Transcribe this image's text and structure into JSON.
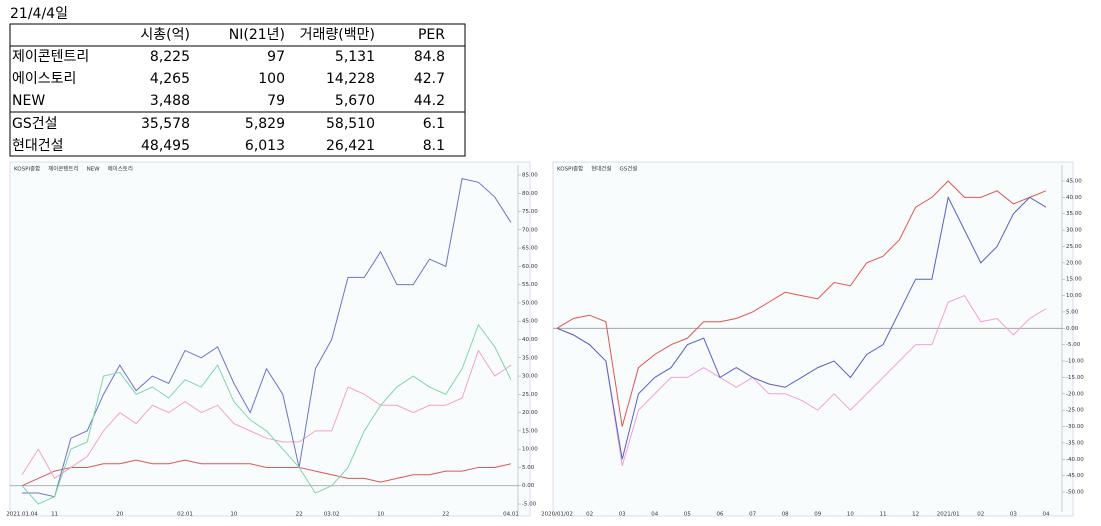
{
  "date": "21/4/4일",
  "table": {
    "header": [
      "시총(억)",
      "NI(21년)",
      "거래량(백만)",
      "PER"
    ],
    "rows": [
      [
        "제이콘텐트리",
        "8,225",
        "97",
        "5,131",
        "84.8"
      ],
      [
        "에이스토리",
        "4,265",
        "100",
        "14,228",
        "42.7"
      ],
      [
        "NEW",
        "3,488",
        "79",
        "5,670",
        "44.2"
      ],
      [
        "GS건설",
        "35,578",
        "5,829",
        "58,510",
        "6.1"
      ],
      [
        "현대건설",
        "48,495",
        "6,013",
        "26,421",
        "8.1"
      ]
    ]
  },
  "chart_data": [
    {
      "type": "line",
      "categories": [
        "2021.01.04",
        null,
        "11",
        null,
        null,
        null,
        "20",
        null,
        null,
        null,
        "02.01",
        null,
        null,
        "10",
        null,
        null,
        null,
        "22",
        null,
        "03.02",
        null,
        null,
        "10",
        null,
        null,
        null,
        "22",
        null,
        null,
        null,
        "04.01"
      ],
      "series": [
        {
          "name": "KOSPI종합",
          "color": "#e05555",
          "values": [
            0,
            2,
            4,
            5,
            5,
            6,
            6,
            7,
            6,
            6,
            7,
            6,
            6,
            6,
            6,
            5,
            5,
            5,
            4,
            3,
            2,
            2,
            1,
            2,
            3,
            3,
            4,
            4,
            5,
            5,
            6
          ]
        },
        {
          "name": "제이콘텐트리",
          "color": "#f4a0c8",
          "values": [
            3,
            10,
            2,
            5,
            8,
            15,
            20,
            17,
            22,
            20,
            23,
            20,
            22,
            17,
            15,
            13,
            12,
            12,
            15,
            15,
            27,
            25,
            22,
            22,
            20,
            22,
            22,
            24,
            37,
            30,
            33
          ]
        },
        {
          "name": "NEW",
          "color": "#6b74c8",
          "values": [
            -2,
            -2,
            -3,
            13,
            15,
            25,
            33,
            26,
            30,
            28,
            37,
            35,
            38,
            28,
            20,
            32,
            25,
            5,
            32,
            40,
            57,
            57,
            64,
            55,
            55,
            62,
            60,
            84,
            83,
            79,
            72
          ]
        },
        {
          "name": "에이스토리",
          "color": "#7fd6a8",
          "values": [
            0,
            -5,
            -3,
            10,
            12,
            30,
            31,
            25,
            27,
            24,
            29,
            27,
            33,
            23,
            18,
            15,
            10,
            5,
            -2,
            0,
            5,
            15,
            22,
            27,
            30,
            27,
            25,
            32,
            44,
            38,
            29
          ]
        }
      ],
      "ylim": [
        -5,
        85
      ],
      "yticks": [
        {
          "value": 85,
          "label": "85.00"
        },
        {
          "value": 80,
          "label": "80.00"
        },
        {
          "value": 75,
          "label": "75.00"
        },
        {
          "value": 70,
          "label": "70.00"
        },
        {
          "value": 65,
          "label": "65.00"
        },
        {
          "value": 60,
          "label": "60.00"
        },
        {
          "value": 55,
          "label": "55.00"
        },
        {
          "value": 50,
          "label": "50.00"
        },
        {
          "value": 45,
          "label": "45.00"
        },
        {
          "value": 40,
          "label": "40.00"
        },
        {
          "value": 35,
          "label": "35.00"
        },
        {
          "value": 30,
          "label": "30.00"
        },
        {
          "value": 25,
          "label": "25.00"
        },
        {
          "value": 20,
          "label": "20.00"
        },
        {
          "value": 15,
          "label": "15.00"
        },
        {
          "value": 10,
          "label": "10.00"
        },
        {
          "value": 5,
          "label": "5.00"
        },
        {
          "value": 0,
          "label": "0.00"
        },
        {
          "value": -5,
          "label": "-5.00"
        }
      ]
    },
    {
      "type": "line",
      "categories": [
        "2020/01/02",
        null,
        "02",
        null,
        "03",
        null,
        "04",
        null,
        "05",
        null,
        "06",
        null,
        "07",
        null,
        "08",
        null,
        "09",
        null,
        "10",
        null,
        "11",
        null,
        "12",
        null,
        "2021/01",
        null,
        "02",
        null,
        "03",
        null,
        "04"
      ],
      "series": [
        {
          "name": "KOSPI종합",
          "color": "#e05555",
          "values": [
            0,
            3,
            4,
            2,
            -30,
            -12,
            -8,
            -5,
            -3,
            2,
            2,
            3,
            5,
            8,
            11,
            10,
            9,
            14,
            13,
            20,
            22,
            27,
            37,
            40,
            45,
            40,
            40,
            42,
            38,
            40,
            42
          ]
        },
        {
          "name": "현대건설",
          "color": "#f4a0d8",
          "values": [
            0,
            -2,
            -5,
            -10,
            -42,
            -25,
            -20,
            -15,
            -15,
            -12,
            -15,
            -18,
            -15,
            -20,
            -20,
            -22,
            -25,
            -20,
            -25,
            -20,
            -15,
            -10,
            -5,
            -5,
            8,
            10,
            2,
            3,
            -2,
            3,
            6
          ]
        },
        {
          "name": "GS건설",
          "color": "#5560c8",
          "values": [
            0,
            -2,
            -5,
            -10,
            -40,
            -20,
            -15,
            -12,
            -5,
            -3,
            -15,
            -12,
            -15,
            -17,
            -18,
            -15,
            -12,
            -10,
            -15,
            -8,
            -5,
            5,
            15,
            15,
            40,
            30,
            20,
            25,
            35,
            40,
            37
          ]
        }
      ],
      "ylim": [
        -50,
        45
      ],
      "yticks": [
        {
          "value": 45,
          "label": "45.00"
        },
        {
          "value": 40,
          "label": "40.00"
        },
        {
          "value": 35,
          "label": "35.00"
        },
        {
          "value": 30,
          "label": "30.00"
        },
        {
          "value": 25,
          "label": "25.00"
        },
        {
          "value": 20,
          "label": "20.00"
        },
        {
          "value": 15,
          "label": "15.00"
        },
        {
          "value": 10,
          "label": "10.00"
        },
        {
          "value": 5,
          "label": "5.00"
        },
        {
          "value": 0,
          "label": "0.00"
        },
        {
          "value": -5,
          "label": "-5.00"
        },
        {
          "value": -10,
          "label": "-10.00"
        },
        {
          "value": -15,
          "label": "-15.00"
        },
        {
          "value": -20,
          "label": "-20.00"
        },
        {
          "value": -25,
          "label": "-25.00"
        },
        {
          "value": -30,
          "label": "-30.00"
        },
        {
          "value": -35,
          "label": "-35.00"
        },
        {
          "value": -40,
          "label": "-40.00"
        },
        {
          "value": -45,
          "label": "-45.00"
        },
        {
          "value": -50,
          "label": "-50.00"
        }
      ]
    }
  ]
}
